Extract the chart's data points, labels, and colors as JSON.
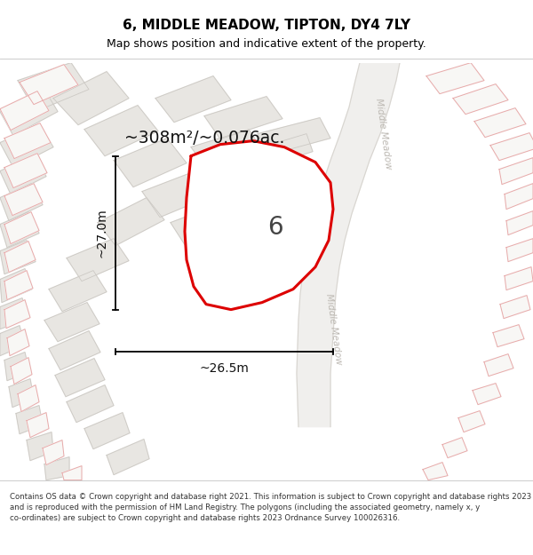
{
  "title": "6, MIDDLE MEADOW, TIPTON, DY4 7LY",
  "subtitle": "Map shows position and indicative extent of the property.",
  "footer": "Contains OS data © Crown copyright and database right 2021. This information is subject to Crown copyright and database rights 2023 and is reproduced with the permission of HM Land Registry. The polygons (including the associated geometry, namely x, y co-ordinates) are subject to Crown copyright and database rights 2023 Ordnance Survey 100026316.",
  "area_label": "~308m²/~0.076ac.",
  "width_label": "~26.5m",
  "height_label": "~27.0m",
  "property_number": "6",
  "bg_color": "#edebe7",
  "plot_bg": "#ffffff",
  "road_color": "#f0efed",
  "road_edge": "#d8d5d0",
  "red_outline": "#dd0000",
  "pink_outline": "#e8aaaa",
  "grey_poly_fill": "#e8e6e2",
  "grey_poly_edge": "#ccc9c4",
  "white_poly_fill": "#f8f7f5",
  "title_color": "#000000",
  "footer_color": "#333333",
  "dim_color": "#111111",
  "road_label_color": "#bcb8b2",
  "road_label": "Middle Meadow"
}
